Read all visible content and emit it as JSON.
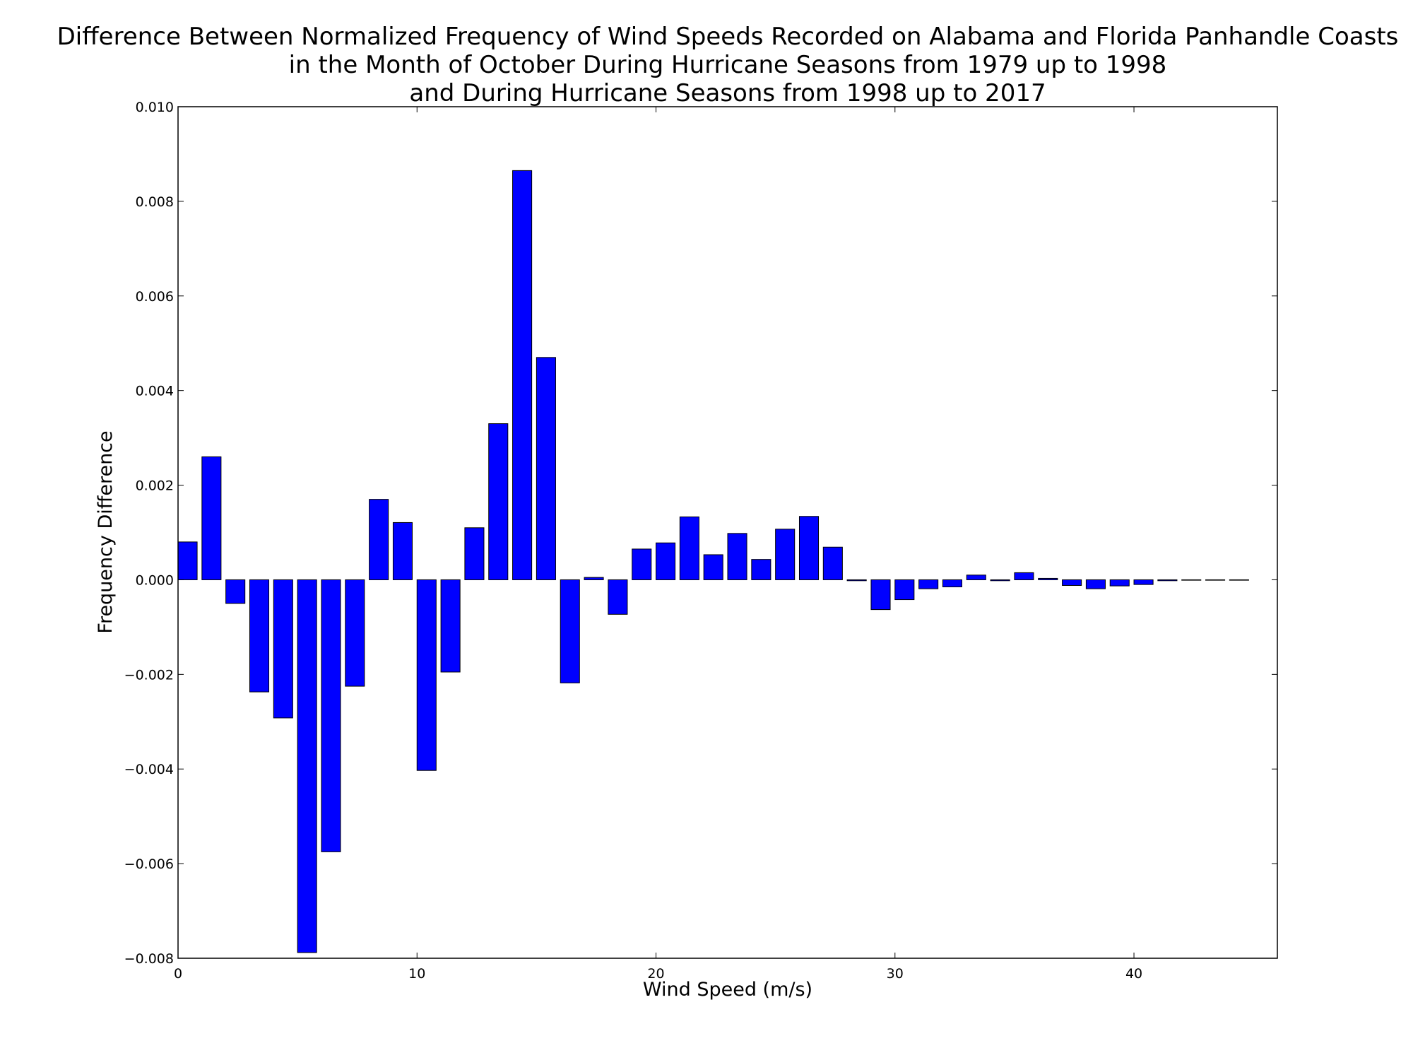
{
  "chart_data": {
    "type": "bar",
    "title_lines": [
      "Difference Between Normalized Frequency of Wind Speeds Recorded on Alabama and Florida Panhandle Coasts",
      "in the Month of October During Hurricane Seasons from 1979 up to 1998",
      "and During Hurricane Seasons from 1998 up to 2017"
    ],
    "xlabel": "Wind Speed (m/s)",
    "ylabel": "Frequency Difference",
    "xlim": [
      0,
      46
    ],
    "ylim": [
      -0.008,
      0.01
    ],
    "xticks": [
      0,
      10,
      20,
      30,
      40
    ],
    "xtick_labels": [
      "0",
      "10",
      "20",
      "30",
      "40"
    ],
    "yticks": [
      -0.008,
      -0.006,
      -0.004,
      -0.002,
      0.0,
      0.002,
      0.004,
      0.006,
      0.008,
      0.01
    ],
    "ytick_labels": [
      "−0.008",
      "−0.006",
      "−0.004",
      "−0.002",
      "0.000",
      "0.002",
      "0.004",
      "0.006",
      "0.008",
      "0.010"
    ],
    "bar_width": 0.8,
    "x": [
      0,
      1,
      2,
      3,
      4,
      5,
      6,
      7,
      8,
      9,
      10,
      11,
      12,
      13,
      14,
      15,
      16,
      17,
      18,
      19,
      20,
      21,
      22,
      23,
      24,
      25,
      26,
      27,
      28,
      29,
      30,
      31,
      32,
      33,
      34,
      35,
      36,
      37,
      38,
      39,
      40,
      41,
      42,
      43,
      44
    ],
    "values": [
      0.0008,
      0.0026,
      -0.0005,
      -0.00237,
      -0.00292,
      -0.00788,
      -0.00575,
      -0.00225,
      0.0017,
      0.00121,
      -0.00403,
      -0.00195,
      0.0011,
      0.0033,
      0.00865,
      0.0047,
      -0.00218,
      5e-05,
      -0.00073,
      0.00065,
      0.00078,
      0.00133,
      0.00053,
      0.00098,
      0.00043,
      0.00107,
      0.00134,
      0.00069,
      -2e-05,
      -0.00063,
      -0.00042,
      -0.00019,
      -0.00015,
      0.0001,
      -2e-05,
      0.00015,
      3e-05,
      -0.00012,
      -0.00019,
      -0.00013,
      -0.0001,
      -2e-05,
      -1e-05,
      -1e-05,
      -1e-05
    ],
    "bar_color": "#0000ff",
    "edge_color": "#000000",
    "grid": false,
    "legend": "none"
  }
}
